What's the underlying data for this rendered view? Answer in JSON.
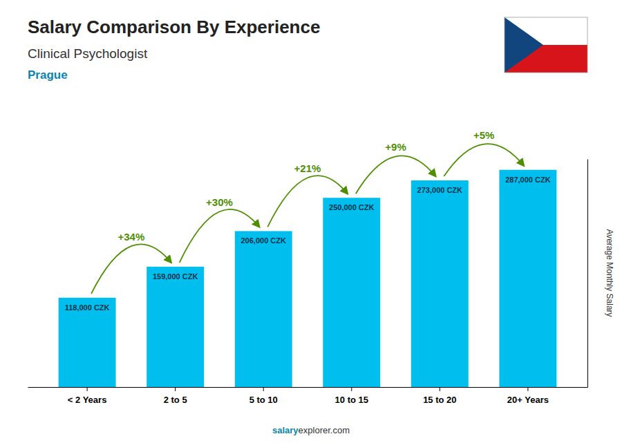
{
  "chart_data": {
    "type": "bar",
    "title": "Salary Comparison By Experience",
    "subtitle": [
      "Clinical Psychologist",
      "Prague"
    ],
    "categories": [
      "< 2 Years",
      "2 to 5",
      "5 to 10",
      "10 to 15",
      "15 to 20",
      "20+ Years"
    ],
    "values": [
      118000,
      159000,
      206000,
      250000,
      273000,
      287000
    ],
    "value_labels": [
      "118,000 CZK",
      "159,000 CZK",
      "206,000 CZK",
      "250,000 CZK",
      "273,000 CZK",
      "287,000 CZK"
    ],
    "data_labels": true,
    "annotations": [
      "+34%",
      "+30%",
      "+21%",
      "+9%",
      "+5%"
    ],
    "ylabel": "Average Monthly Salary",
    "footer": [
      "salary",
      "explorer.com"
    ],
    "color": "#00BFEE",
    "ylim": [
      0,
      301350
    ],
    "yticks": [],
    "tick_labels": "x",
    "grid": false
  }
}
